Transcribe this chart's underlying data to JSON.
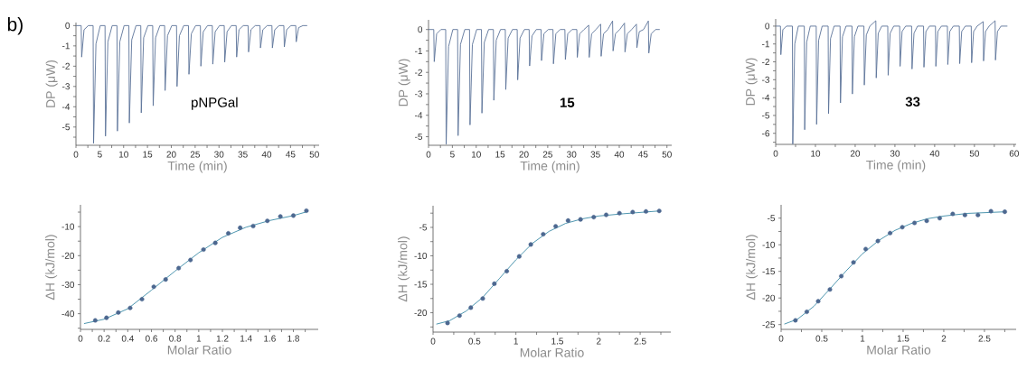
{
  "chart_data": [
    {
      "type": "line",
      "xlabel": "Time (min)",
      "ylabel": "DP (μW)",
      "annotations": [
        "b)",
        "pNPGal"
      ],
      "xlim": [
        0,
        51
      ],
      "ylim": [
        -5.9,
        0.15
      ],
      "xticks": [
        0,
        {
          "value": 2.5,
          "label": null
        },
        5,
        {
          "value": 7.5,
          "label": null
        },
        10,
        {
          "value": 12.5,
          "label": null
        },
        15,
        {
          "value": 17.5,
          "label": null
        },
        20,
        {
          "value": 22.5,
          "label": null
        },
        25,
        {
          "value": 27.5,
          "label": null
        },
        30,
        {
          "value": 32.5,
          "label": null
        },
        35,
        {
          "value": 37.5,
          "label": null
        },
        40,
        {
          "value": 42.5,
          "label": null
        },
        45,
        {
          "value": 47.5,
          "label": null
        },
        50
      ],
      "yticks": [
        0,
        {
          "value": -0.5,
          "label": null
        },
        -1,
        {
          "value": -1.5,
          "label": null
        },
        -2,
        {
          "value": -2.5,
          "label": null
        },
        -3,
        {
          "value": -3.5,
          "label": null
        },
        -4,
        {
          "value": -4.5,
          "label": null
        },
        -5,
        {
          "value": -5.5,
          "label": null
        }
      ],
      "series": [
        {
          "color": "#5b7399",
          "x": [
            0,
            1.1,
            1.2,
            1.7,
            2.6,
            3.6,
            3.7,
            4.2,
            5.1,
            6.1,
            6.2,
            6.7,
            7.6,
            8.6,
            8.7,
            9.2,
            10.1,
            11.1,
            11.2,
            11.7,
            12.6,
            13.6,
            13.7,
            14.2,
            15.1,
            16.1,
            16.2,
            16.7,
            17.6,
            18.6,
            18.7,
            19.2,
            20.1,
            21.1,
            21.2,
            21.7,
            22.6,
            23.6,
            23.7,
            24.2,
            25.1,
            26.1,
            26.2,
            26.7,
            27.6,
            28.6,
            28.7,
            29.2,
            30.1,
            31.1,
            31.2,
            31.7,
            32.6,
            33.6,
            33.7,
            34.2,
            35.1,
            36.1,
            36.2,
            36.7,
            37.6,
            38.6,
            38.7,
            39.2,
            40.1,
            41.1,
            41.2,
            41.7,
            42.6,
            43.6,
            43.7,
            44.2,
            45.1,
            46.1,
            46.2,
            46.7,
            47.6,
            48.5
          ],
          "values": [
            0,
            0,
            -1.55,
            -0.2,
            0,
            0,
            -5.8,
            -0.9,
            0,
            0,
            -5.45,
            -0.8,
            0,
            0,
            -5.2,
            -0.8,
            0,
            0,
            -4.8,
            -0.7,
            0,
            0,
            -4.3,
            -0.6,
            0,
            0,
            -3.95,
            -0.6,
            0,
            0,
            -3.2,
            -0.5,
            0,
            0,
            -3.0,
            -0.5,
            0,
            0,
            -2.4,
            -0.4,
            0,
            0,
            -2.0,
            -0.3,
            0,
            0,
            -1.9,
            -0.3,
            0,
            0,
            -1.8,
            -0.3,
            0,
            0,
            -1.55,
            -0.2,
            0,
            0,
            -1.3,
            -0.2,
            0,
            0,
            -1.1,
            -0.2,
            0,
            0,
            -1.1,
            -0.2,
            0,
            0,
            -1.05,
            -0.2,
            0,
            0,
            -0.8,
            -0.1,
            0,
            0
          ]
        }
      ]
    },
    {
      "type": "line",
      "xlabel": "Time (min)",
      "ylabel": "DP (μW)",
      "annotations": [
        "**15**"
      ],
      "xlim": [
        0,
        51
      ],
      "ylim": [
        -5.4,
        0.45
      ],
      "xticks": [
        0,
        {
          "value": 2.5,
          "label": null
        },
        5,
        {
          "value": 7.5,
          "label": null
        },
        10,
        {
          "value": 12.5,
          "label": null
        },
        15,
        {
          "value": 17.5,
          "label": null
        },
        20,
        {
          "value": 22.5,
          "label": null
        },
        25,
        {
          "value": 27.5,
          "label": null
        },
        30,
        {
          "value": 32.5,
          "label": null
        },
        35,
        {
          "value": 37.5,
          "label": null
        },
        40,
        {
          "value": 42.5,
          "label": null
        },
        45,
        {
          "value": 47.5,
          "label": null
        },
        50
      ],
      "yticks": [
        0,
        {
          "value": -0.5,
          "label": null
        },
        -1,
        {
          "value": -1.5,
          "label": null
        },
        -2,
        {
          "value": -2.5,
          "label": null
        },
        -3,
        {
          "value": -3.5,
          "label": null
        },
        -4,
        {
          "value": -4.5,
          "label": null
        },
        -5
      ],
      "series": [
        {
          "color": "#5b7399",
          "x": [
            0,
            1.1,
            1.2,
            1.7,
            2.6,
            3.6,
            3.7,
            4.2,
            5.1,
            6.1,
            6.2,
            6.7,
            7.6,
            8.6,
            8.7,
            9.2,
            10.1,
            11.1,
            11.2,
            11.7,
            12.6,
            13.6,
            13.7,
            14.2,
            15.1,
            16.1,
            16.2,
            16.7,
            17.6,
            18.6,
            18.7,
            19.2,
            20.1,
            21.1,
            21.2,
            21.7,
            22.6,
            23.6,
            23.7,
            24.2,
            25.1,
            26.1,
            26.2,
            26.7,
            27.6,
            28.6,
            28.7,
            29.2,
            30.1,
            31.1,
            31.2,
            31.7,
            32.6,
            33.6,
            33.7,
            34.2,
            35.1,
            36.1,
            36.2,
            36.7,
            37.6,
            38.6,
            38.7,
            39.2,
            40.1,
            41.1,
            41.2,
            41.7,
            42.6,
            43.6,
            43.7,
            44.2,
            45.1,
            46.1,
            46.2,
            46.7,
            47.6,
            48.5
          ],
          "values": [
            0,
            0,
            -1.5,
            -0.2,
            0,
            0,
            -5.35,
            -0.8,
            0,
            0,
            -4.95,
            -0.7,
            0,
            0,
            -4.45,
            -0.7,
            0,
            0,
            -3.9,
            -0.6,
            0,
            0,
            -3.3,
            -0.5,
            0,
            0,
            -2.8,
            -0.4,
            0,
            0,
            -2.35,
            -0.4,
            0,
            0,
            -1.7,
            -0.3,
            0,
            0,
            -1.45,
            -0.2,
            0,
            0,
            -1.6,
            -0.2,
            0,
            0,
            -1.4,
            -0.2,
            0,
            0,
            -1.3,
            -0.2,
            0,
            0.2,
            -1.3,
            -0.2,
            0,
            0.25,
            -1.25,
            -0.2,
            0,
            0.4,
            -1.0,
            -0.2,
            0,
            0.3,
            -1.05,
            -0.2,
            0,
            0.25,
            -0.85,
            -0.1,
            0,
            0.4,
            -1.1,
            -0.2,
            0,
            0
          ]
        }
      ]
    },
    {
      "type": "line",
      "xlabel": "Time (min)",
      "ylabel": "DP (μW)",
      "annotations": [
        "**33**"
      ],
      "xlim": [
        0,
        60.5
      ],
      "ylim": [
        -6.62,
        0.4
      ],
      "xticks": [
        0,
        {
          "value": 5,
          "label": null
        },
        10,
        {
          "value": 15,
          "label": null
        },
        20,
        {
          "value": 25,
          "label": null
        },
        30,
        {
          "value": 35,
          "label": null
        },
        40,
        {
          "value": 45,
          "label": null
        },
        50,
        {
          "value": 55,
          "label": null
        },
        60
      ],
      "yticks": [
        0,
        {
          "value": -0.5,
          "label": null
        },
        -1,
        {
          "value": -1.5,
          "label": null
        },
        -2,
        {
          "value": -2.5,
          "label": null
        },
        -3,
        {
          "value": -3.5,
          "label": null
        },
        -4,
        {
          "value": -4.5,
          "label": null
        },
        -5,
        {
          "value": -5.5,
          "label": null
        },
        -6,
        {
          "value": -6.5,
          "label": null
        }
      ],
      "series": [
        {
          "color": "#5b7399",
          "x": [
            0,
            1.2,
            1.3,
            1.8,
            2.7,
            4.2,
            4.3,
            4.8,
            5.7,
            7.2,
            7.3,
            7.8,
            8.7,
            10.2,
            10.3,
            10.8,
            11.7,
            13.2,
            13.3,
            13.8,
            14.7,
            16.2,
            16.3,
            16.8,
            17.7,
            19.2,
            19.3,
            19.8,
            20.7,
            22.2,
            22.3,
            22.8,
            23.7,
            25.2,
            25.3,
            25.8,
            26.7,
            28.2,
            28.3,
            28.8,
            29.7,
            31.2,
            31.3,
            31.8,
            32.7,
            34.2,
            34.3,
            34.8,
            35.7,
            37.2,
            37.3,
            37.8,
            38.7,
            40.2,
            40.3,
            40.8,
            41.7,
            43.2,
            43.3,
            43.8,
            44.7,
            46.2,
            46.3,
            46.8,
            47.7,
            49.2,
            49.3,
            49.8,
            50.7,
            52.2,
            52.3,
            52.8,
            53.7,
            55.2,
            55.3,
            55.8,
            56.7,
            58.3
          ],
          "values": [
            0,
            0,
            -1.6,
            -0.2,
            0,
            0,
            -6.6,
            -1.0,
            0,
            0,
            -5.8,
            -0.9,
            0,
            0,
            -5.5,
            -0.8,
            0,
            0,
            -4.9,
            -0.7,
            0,
            0,
            -4.3,
            -0.6,
            0,
            0,
            -3.8,
            -0.6,
            0,
            0,
            -3.3,
            -0.5,
            0,
            0.3,
            -2.9,
            -0.4,
            0,
            0,
            -2.75,
            -0.4,
            0,
            0,
            -2.25,
            -0.3,
            0,
            0,
            -2.4,
            -0.4,
            0,
            0,
            -2.3,
            -0.3,
            0,
            0,
            -2.25,
            -0.3,
            0,
            0,
            -2.15,
            -0.3,
            0,
            0,
            -2.1,
            -0.3,
            0,
            0,
            -2.05,
            -0.3,
            0,
            0.25,
            -1.95,
            -0.3,
            0,
            0.3,
            -1.9,
            -0.3,
            0,
            0
          ]
        }
      ]
    },
    {
      "type": "scatter",
      "xlabel": "Molar Ratio",
      "ylabel": "ΔH (kJ/mol)",
      "xlim": [
        0,
        2.01
      ],
      "ylim": [
        -45.4,
        -2.5
      ],
      "xticks": [
        0,
        {
          "value": 0.1,
          "label": null
        },
        0.2,
        {
          "value": 0.3,
          "label": null
        },
        0.4,
        {
          "value": 0.5,
          "label": null
        },
        0.6,
        {
          "value": 0.7,
          "label": null
        },
        0.8,
        {
          "value": 0.9,
          "label": null
        },
        1,
        {
          "value": 1.1,
          "label": null
        },
        1.2,
        {
          "value": 1.3,
          "label": null
        },
        1.4,
        {
          "value": 1.5,
          "label": null
        },
        1.6,
        {
          "value": 1.7,
          "label": null
        },
        1.8,
        {
          "value": 1.9,
          "label": null
        }
      ],
      "yticks": [
        {
          "value": -5,
          "label": null
        },
        -10,
        {
          "value": -15,
          "label": null
        },
        -20,
        {
          "value": -25,
          "label": null
        },
        -30,
        {
          "value": -35,
          "label": null
        },
        -40,
        {
          "value": -45,
          "label": null
        }
      ],
      "series": [
        {
          "type": "line",
          "color": "#3a8aa6",
          "x": [
            0.03,
            0.2,
            0.4,
            0.6,
            0.8,
            1.0,
            1.2,
            1.4,
            1.6,
            1.8,
            1.92
          ],
          "values": [
            -43.4,
            -41.9,
            -38.3,
            -31.9,
            -25.3,
            -19.0,
            -13.7,
            -10.2,
            -7.9,
            -6.2,
            -4.8
          ]
        },
        {
          "color": "#4d6890",
          "marker": "circle",
          "x": [
            0.125,
            0.22,
            0.32,
            0.42,
            0.52,
            0.62,
            0.72,
            0.83,
            0.93,
            1.04,
            1.14,
            1.25,
            1.35,
            1.46,
            1.58,
            1.69,
            1.8,
            1.91
          ],
          "values": [
            -42.3,
            -41.4,
            -39.6,
            -38.0,
            -35.0,
            -30.7,
            -28.2,
            -24.3,
            -21.5,
            -17.9,
            -15.6,
            -12.3,
            -10.4,
            -9.8,
            -8.0,
            -6.5,
            -6.2,
            -4.5
          ]
        }
      ]
    },
    {
      "type": "scatter",
      "xlabel": "Molar Ratio",
      "ylabel": "ΔH (kJ/mol)",
      "xlim": [
        0,
        2.87
      ],
      "ylim": [
        -23.4,
        -1.2
      ],
      "xticks": [
        0,
        {
          "value": 0.25,
          "label": null
        },
        0.5,
        {
          "value": 0.75,
          "label": null
        },
        1,
        {
          "value": 1.25,
          "label": null
        },
        1.5,
        {
          "value": 1.75,
          "label": null
        },
        2,
        {
          "value": 2.25,
          "label": null
        },
        2.5,
        {
          "value": 2.75,
          "label": null
        }
      ],
      "yticks": [
        {
          "value": -2.5,
          "label": null
        },
        -5,
        {
          "value": -7.5,
          "label": null
        },
        -10,
        {
          "value": -12.5,
          "label": null
        },
        -15,
        {
          "value": -17.5,
          "label": null
        },
        -20,
        {
          "value": -22.5,
          "label": null
        }
      ],
      "series": [
        {
          "type": "line",
          "color": "#3a8aa6",
          "x": [
            0.04,
            0.2,
            0.4,
            0.6,
            0.8,
            1.0,
            1.2,
            1.4,
            1.6,
            1.8,
            2.0,
            2.3,
            2.74
          ],
          "values": [
            -22.0,
            -21.4,
            -19.7,
            -17.3,
            -14.0,
            -10.7,
            -7.8,
            -5.7,
            -4.3,
            -3.5,
            -3.0,
            -2.6,
            -2.1
          ]
        },
        {
          "color": "#4d6890",
          "marker": "circle",
          "x": [
            0.175,
            0.32,
            0.456,
            0.6,
            0.74,
            0.89,
            1.04,
            1.18,
            1.33,
            1.48,
            1.63,
            1.78,
            1.94,
            2.09,
            2.25,
            2.41,
            2.57,
            2.73
          ],
          "values": [
            -21.8,
            -20.5,
            -19.1,
            -17.5,
            -14.9,
            -12.7,
            -10.1,
            -8.0,
            -6.2,
            -4.8,
            -3.8,
            -3.6,
            -3.2,
            -2.8,
            -2.5,
            -2.3,
            -2.2,
            -2.1
          ]
        }
      ]
    },
    {
      "type": "scatter",
      "xlabel": "Molar Ratio",
      "ylabel": "ΔH (kJ/mol)",
      "xlim": [
        0,
        2.89
      ],
      "ylim": [
        -25.9,
        -2.5
      ],
      "xticks": [
        0,
        {
          "value": 0.25,
          "label": null
        },
        0.5,
        {
          "value": 0.75,
          "label": null
        },
        1,
        {
          "value": 1.25,
          "label": null
        },
        1.5,
        {
          "value": 1.75,
          "label": null
        },
        2,
        {
          "value": 2.25,
          "label": null
        },
        2.5,
        {
          "value": 2.75,
          "label": null
        }
      ],
      "yticks": [
        -5,
        {
          "value": -7.5,
          "label": null
        },
        -10,
        {
          "value": -12.5,
          "label": null
        },
        -15,
        {
          "value": -17.5,
          "label": null
        },
        -20,
        {
          "value": -22.5,
          "label": null
        },
        -25
      ],
      "series": [
        {
          "type": "line",
          "color": "#3a8aa6",
          "x": [
            0.04,
            0.2,
            0.4,
            0.6,
            0.8,
            1.0,
            1.2,
            1.4,
            1.6,
            1.8,
            2.0,
            2.3,
            2.76
          ],
          "values": [
            -24.9,
            -24.0,
            -21.6,
            -18.3,
            -14.9,
            -11.7,
            -9.2,
            -7.3,
            -6.0,
            -5.1,
            -4.6,
            -4.1,
            -3.8
          ]
        },
        {
          "color": "#4d6890",
          "marker": "circle",
          "x": [
            0.176,
            0.316,
            0.456,
            0.6,
            0.74,
            0.89,
            1.04,
            1.19,
            1.34,
            1.49,
            1.64,
            1.79,
            1.95,
            2.11,
            2.26,
            2.42,
            2.58,
            2.75
          ],
          "values": [
            -24.2,
            -22.6,
            -20.6,
            -18.4,
            -15.9,
            -13.3,
            -10.8,
            -9.3,
            -7.8,
            -6.7,
            -5.9,
            -5.5,
            -5.0,
            -4.2,
            -4.4,
            -4.4,
            -3.7,
            -3.8
          ]
        }
      ]
    }
  ]
}
